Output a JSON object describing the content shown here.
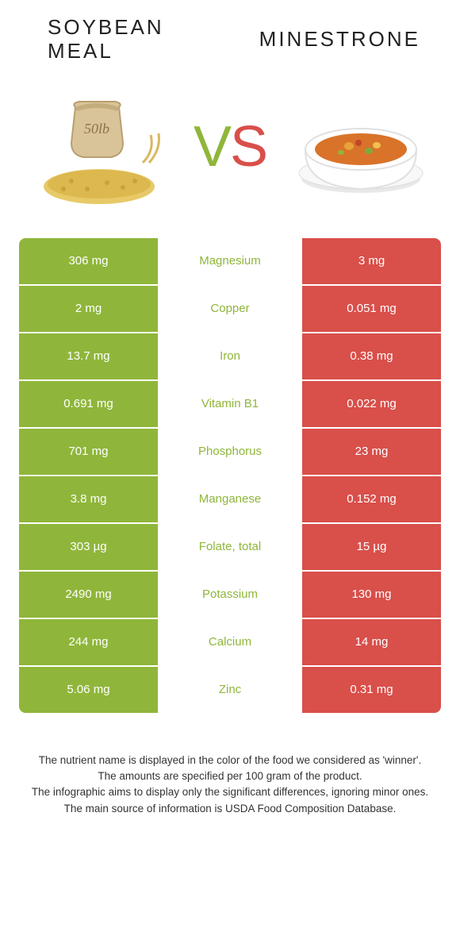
{
  "header": {
    "left_title_line1": "SOYBEAN",
    "left_title_line2": "MEAL",
    "right_title": "MINESTRONE",
    "vs_v": "V",
    "vs_s": "S"
  },
  "colors": {
    "left_cell": "#8fb63a",
    "right_cell": "#d94f4a",
    "mid_text": "#8fb63a",
    "row_gap_bg": "#ffffff"
  },
  "table": {
    "rows": [
      {
        "left": "306 mg",
        "label": "Magnesium",
        "right": "3 mg"
      },
      {
        "left": "2 mg",
        "label": "Copper",
        "right": "0.051 mg"
      },
      {
        "left": "13.7 mg",
        "label": "Iron",
        "right": "0.38 mg"
      },
      {
        "left": "0.691 mg",
        "label": "Vitamin B1",
        "right": "0.022 mg"
      },
      {
        "left": "701 mg",
        "label": "Phosphorus",
        "right": "23 mg"
      },
      {
        "left": "3.8 mg",
        "label": "Manganese",
        "right": "0.152 mg"
      },
      {
        "left": "303 µg",
        "label": "Folate, total",
        "right": "15 µg"
      },
      {
        "left": "2490 mg",
        "label": "Potassium",
        "right": "130 mg"
      },
      {
        "left": "244 mg",
        "label": "Calcium",
        "right": "14 mg"
      },
      {
        "left": "5.06 mg",
        "label": "Zinc",
        "right": "0.31 mg"
      }
    ]
  },
  "footnotes": {
    "line1": "The nutrient name is displayed in the color of the food we considered as 'winner'.",
    "line2": "The amounts are specified per 100 gram of the product.",
    "line3": "The infographic aims to display only the significant differences, ignoring minor ones.",
    "line4": "The main source of information is USDA Food Composition Database."
  },
  "images": {
    "left_alt": "soybean-meal-sack",
    "right_alt": "minestrone-bowl"
  }
}
